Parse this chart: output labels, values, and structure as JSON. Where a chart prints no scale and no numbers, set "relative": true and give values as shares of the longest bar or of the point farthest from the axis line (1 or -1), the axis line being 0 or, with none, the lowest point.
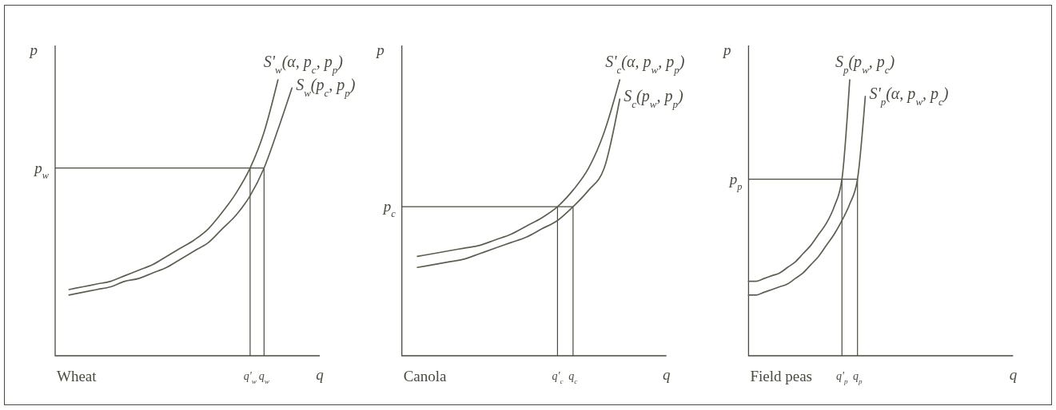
{
  "chart_data": [
    {
      "type": "line",
      "title": "Wheat",
      "xlabel": "q",
      "ylabel": "p",
      "relative": true,
      "categories": [
        null,
        null,
        null,
        null,
        null,
        null,
        null,
        null,
        null,
        null,
        null,
        null,
        null,
        null,
        "q'$_{w}$",
        "q$_{w}$",
        null,
        null,
        null
      ],
      "series": [
        {
          "name": "S'$_{w}$(α, p$_{c}$, p$_{p}$)",
          "color": "#5e5e50",
          "values": [
            null,
            0.24,
            0.25,
            0.26,
            0.27,
            0.29,
            0.31,
            0.33,
            0.36,
            0.39,
            0.42,
            0.46,
            0.52,
            0.59,
            0.68,
            0.81,
            1,
            null,
            null
          ]
        },
        {
          "name": "S$_{w}$(p$_{c}$, p$_{p}$)",
          "color": "#5e5e50",
          "values": [
            null,
            0.22,
            0.23,
            0.24,
            0.25,
            0.27,
            0.28,
            0.3,
            0.32,
            0.35,
            0.38,
            0.41,
            0.46,
            0.51,
            0.58,
            0.68,
            0.82,
            0.97,
            null
          ]
        }
      ],
      "ref_lines": [
        {
          "axis": "y",
          "value": 0.68,
          "label": "p$_{w}$"
        },
        {
          "axis": "x",
          "value": "q'$_{w}$"
        },
        {
          "axis": "x",
          "value": "q$_{w}$"
        }
      ]
    },
    {
      "type": "line",
      "title": "Canola",
      "xlabel": "q",
      "ylabel": "p",
      "relative": true,
      "categories": [
        null,
        null,
        null,
        null,
        null,
        null,
        null,
        null,
        null,
        null,
        "q'$_{c}$",
        "q$_{c}$",
        null,
        null,
        null,
        null,
        null
      ],
      "series": [
        {
          "name": "S'$_{c}$(α, p$_{w}$, p$_{p}$)",
          "color": "#5e5e50",
          "values": [
            null,
            0.36,
            0.37,
            0.38,
            0.39,
            0.4,
            0.42,
            0.44,
            0.47,
            0.5,
            0.54,
            0.6,
            0.68,
            0.81,
            1,
            null,
            null
          ]
        },
        {
          "name": "S$_{c}$(p$_{w}$, p$_{p}$)",
          "color": "#5e5e50",
          "values": [
            null,
            0.32,
            0.33,
            0.34,
            0.35,
            0.37,
            0.39,
            0.41,
            0.43,
            0.46,
            0.49,
            0.54,
            0.6,
            0.68,
            0.93,
            null,
            null
          ]
        }
      ],
      "ref_lines": [
        {
          "axis": "y",
          "value": 0.54,
          "label": "p$_{c}$"
        },
        {
          "axis": "x",
          "value": "q'$_{c}$"
        },
        {
          "axis": "x",
          "value": "q$_{c}$"
        }
      ]
    },
    {
      "type": "line",
      "title": "Field peas",
      "xlabel": "q",
      "ylabel": "p",
      "relative": true,
      "categories": [
        null,
        null,
        null,
        null,
        null,
        null,
        null,
        null,
        null,
        null,
        null,
        null,
        "q'$_{p}$",
        null,
        "q$_{p}$",
        null,
        null,
        null,
        null,
        null,
        null,
        null,
        null,
        null,
        null,
        null,
        null,
        null,
        null,
        null,
        null,
        null,
        null,
        null
      ],
      "series": [
        {
          "name": "S$_{p}$(p$_{w}$, p$_{c}$)",
          "color": "#5e5e50",
          "values": [
            0.27,
            0.27,
            0.28,
            0.29,
            0.3,
            0.32,
            0.34,
            0.37,
            0.4,
            0.44,
            0.48,
            0.54,
            0.64,
            1,
            null,
            null,
            null,
            null,
            null,
            null,
            null,
            null,
            null,
            null,
            null,
            null,
            null,
            null,
            null,
            null,
            null,
            null,
            null,
            null
          ]
        },
        {
          "name": "S'$_{p}$(α, p$_{w}$, p$_{c}$)",
          "color": "#5e5e50",
          "values": [
            0.22,
            0.22,
            0.23,
            0.24,
            0.25,
            0.26,
            0.28,
            0.3,
            0.33,
            0.36,
            0.4,
            0.44,
            0.49,
            0.55,
            0.64,
            0.94,
            null,
            null,
            null,
            null,
            null,
            null,
            null,
            null,
            null,
            null,
            null,
            null,
            null,
            null,
            null,
            null,
            null,
            null
          ]
        }
      ],
      "ref_lines": [
        {
          "axis": "y",
          "value": 0.64,
          "label": "p$_{p}$"
        },
        {
          "axis": "x",
          "value": "q'$_{p}$"
        },
        {
          "axis": "x",
          "value": "q$_{p}$"
        }
      ]
    }
  ]
}
